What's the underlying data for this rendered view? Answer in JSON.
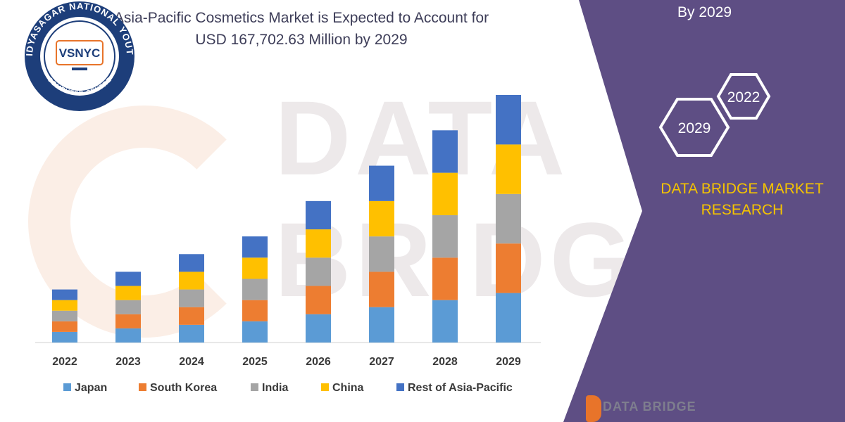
{
  "title_line1": "Asia-Pacific Cosmetics Market is Expected to Account for",
  "title_line2": "USD 167,702.63 Million by 2029",
  "logo": {
    "ring_text": "VIDYASAGAR NATIONAL YOUTH",
    "ring_bottom_text": "COMPUTER CENTRE",
    "center_text": "VSNYC"
  },
  "watermark": "DATA BRIDGE",
  "panel": {
    "top_text": "By 2029",
    "hex_year_small": "2022",
    "hex_year_large": "2029",
    "company_line1": "DATA BRIDGE MARKET",
    "company_line2": "RESEARCH",
    "footer_brand": "DATA BRIDGE"
  },
  "colors": {
    "panel_bg": "#5e4e84",
    "accent_yellow": "#f5c400"
  },
  "chart_data": {
    "type": "bar",
    "stacked": true,
    "categories": [
      "2022",
      "2023",
      "2024",
      "2025",
      "2026",
      "2027",
      "2028",
      "2029"
    ],
    "series": [
      {
        "name": "Japan",
        "color": "#5b9bd5",
        "values": [
          15,
          20,
          25,
          30,
          40,
          50,
          60,
          70
        ]
      },
      {
        "name": "South Korea",
        "color": "#ed7d31",
        "values": [
          15,
          20,
          25,
          30,
          40,
          50,
          60,
          70
        ]
      },
      {
        "name": "India",
        "color": "#a5a5a5",
        "values": [
          15,
          20,
          25,
          30,
          40,
          50,
          60,
          70
        ]
      },
      {
        "name": "China",
        "color": "#ffc000",
        "values": [
          15,
          20,
          25,
          30,
          40,
          50,
          60,
          70
        ]
      },
      {
        "name": "Rest of Asia-Pacific",
        "color": "#4472c4",
        "values": [
          15,
          20,
          25,
          30,
          40,
          50,
          60,
          70
        ]
      }
    ],
    "ylim": [
      0,
      350
    ],
    "grid": false,
    "legend": "bottom"
  }
}
